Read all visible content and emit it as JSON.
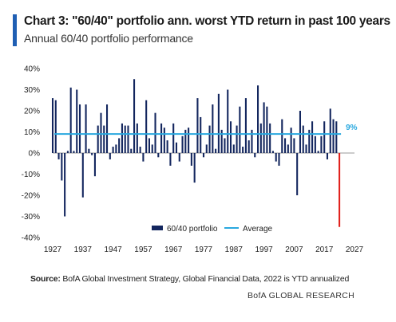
{
  "title": "Chart 3: \"60/40\" portfolio ann. worst YTD return in past 100 years",
  "subtitle": "Annual 60/40 portfolio performance",
  "source_label": "Source:",
  "source_text": " BofA Global Investment Strategy, Global Financial Data, 2022 is YTD annualized",
  "brand": "BofA GLOBAL RESEARCH",
  "colors": {
    "accent": "#1f5fb4",
    "bar": "#13265e",
    "highlight": "#e0201b",
    "average": "#29a8df"
  },
  "chart_data": {
    "type": "bar",
    "x_start_year": 1927,
    "x_end_year": 2022,
    "ylim": [
      -40,
      40
    ],
    "yticks": [
      "40%",
      "30%",
      "20%",
      "10%",
      "0%",
      "-10%",
      "-20%",
      "-30%",
      "-40%"
    ],
    "ytick_values": [
      40,
      30,
      20,
      10,
      0,
      -10,
      -20,
      -30,
      -40
    ],
    "xticks": [
      "1927",
      "1937",
      "1947",
      "1957",
      "1967",
      "1977",
      "1987",
      "1997",
      "2007",
      "2017",
      "2027"
    ],
    "xtick_values": [
      1927,
      1937,
      1947,
      1957,
      1967,
      1977,
      1987,
      1997,
      2007,
      2017,
      2027
    ],
    "average": 9,
    "average_label": "9%",
    "highlight_year": 2022,
    "legend": {
      "series": "60/40 portfolio",
      "average": "Average"
    },
    "years": [
      1927,
      1928,
      1929,
      1930,
      1931,
      1932,
      1933,
      1934,
      1935,
      1936,
      1937,
      1938,
      1939,
      1940,
      1941,
      1942,
      1943,
      1944,
      1945,
      1946,
      1947,
      1948,
      1949,
      1950,
      1951,
      1952,
      1953,
      1954,
      1955,
      1956,
      1957,
      1958,
      1959,
      1960,
      1961,
      1962,
      1963,
      1964,
      1965,
      1966,
      1967,
      1968,
      1969,
      1970,
      1971,
      1972,
      1973,
      1974,
      1975,
      1976,
      1977,
      1978,
      1979,
      1980,
      1981,
      1982,
      1983,
      1984,
      1985,
      1986,
      1987,
      1988,
      1989,
      1990,
      1991,
      1992,
      1993,
      1994,
      1995,
      1996,
      1997,
      1998,
      1999,
      2000,
      2001,
      2002,
      2003,
      2004,
      2005,
      2006,
      2007,
      2008,
      2009,
      2010,
      2011,
      2012,
      2013,
      2014,
      2015,
      2016,
      2017,
      2018,
      2019,
      2020,
      2021,
      2022
    ],
    "values": [
      26,
      25,
      -3,
      -13,
      -30,
      1,
      31,
      1,
      30,
      23,
      -21,
      23,
      2,
      -1,
      -11,
      13,
      19,
      13,
      23,
      -3,
      3,
      4,
      7,
      14,
      13,
      13,
      2,
      35,
      14,
      3,
      -4,
      25,
      7,
      4,
      19,
      -2,
      14,
      12,
      6,
      -6,
      14,
      5,
      -4,
      8,
      11,
      12,
      -6,
      -14,
      26,
      17,
      -2,
      4,
      13,
      23,
      2,
      28,
      11,
      7,
      30,
      15,
      4,
      13,
      22,
      3,
      26,
      6,
      11,
      -2,
      32,
      14,
      24,
      22,
      14,
      1,
      -4,
      -6,
      16,
      7,
      4,
      12,
      7,
      -20,
      20,
      13,
      4,
      11,
      15,
      8,
      1,
      8,
      15,
      -3,
      21,
      16,
      15,
      -35
    ]
  }
}
